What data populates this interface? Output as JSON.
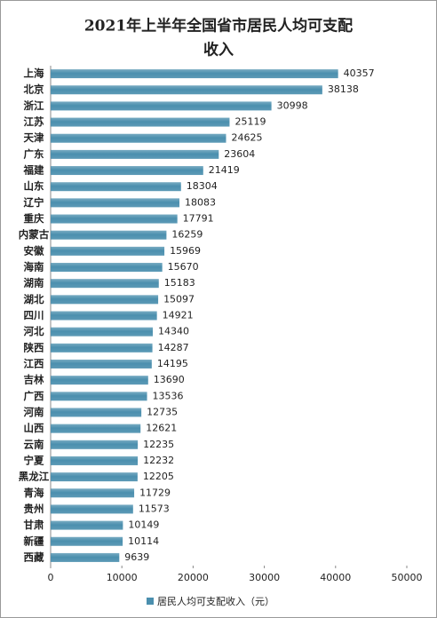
{
  "chart_data": {
    "type": "bar",
    "orientation": "horizontal",
    "title": [
      "2021年上半年全国省市居民人均可支配",
      "收入"
    ],
    "categories": [
      "上海",
      "北京",
      "浙江",
      "江苏",
      "天津",
      "广东",
      "福建",
      "山东",
      "辽宁",
      "重庆",
      "内蒙古",
      "安徽",
      "海南",
      "湖南",
      "湖北",
      "四川",
      "河北",
      "陕西",
      "江西",
      "吉林",
      "广西",
      "河南",
      "山西",
      "云南",
      "宁夏",
      "黑龙江",
      "青海",
      "贵州",
      "甘肃",
      "新疆",
      "西藏"
    ],
    "series": [
      {
        "name": "居民人均可支配收入（元）",
        "color": "#4b8fae",
        "values": [
          40357,
          38138,
          30998,
          25119,
          24625,
          23604,
          21419,
          18304,
          18083,
          17791,
          16259,
          15969,
          15670,
          15183,
          15097,
          14921,
          14340,
          14287,
          14195,
          13690,
          13536,
          12735,
          12621,
          12235,
          12232,
          12205,
          11729,
          11573,
          10149,
          10114,
          9639
        ]
      }
    ],
    "xlim": [
      0,
      50000
    ],
    "xticks": [
      0,
      10000,
      20000,
      30000,
      40000,
      50000
    ],
    "legend": "bottom"
  }
}
